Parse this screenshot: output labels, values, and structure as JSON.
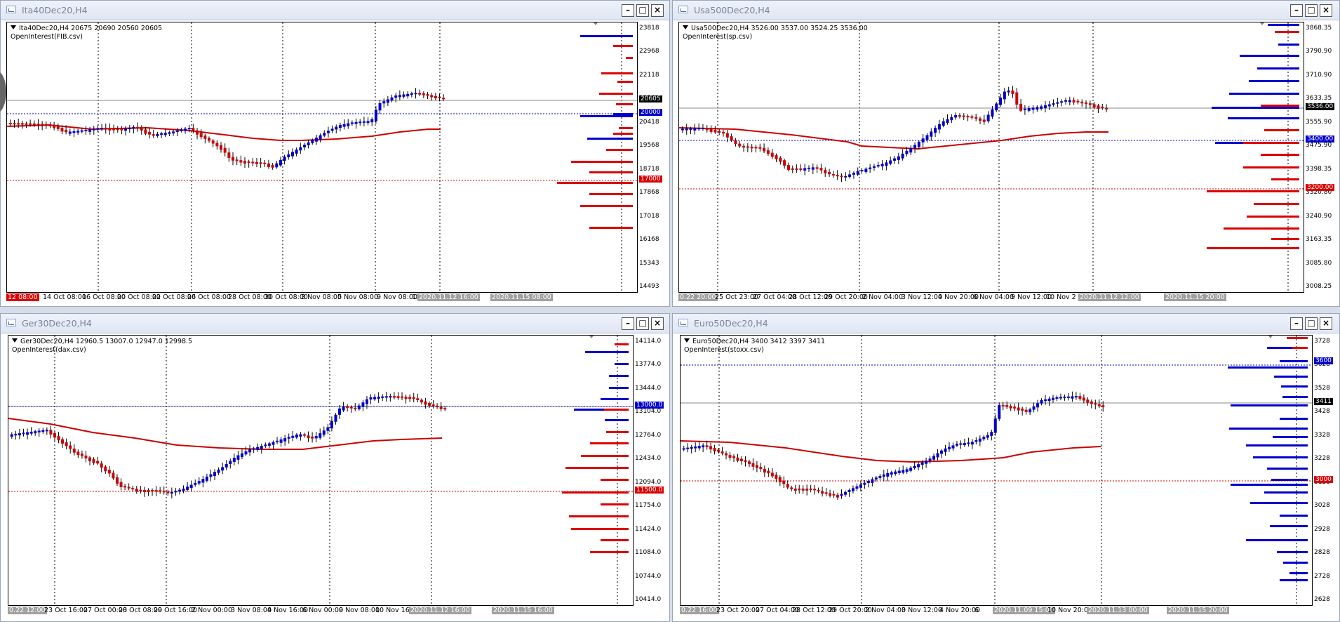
{
  "colors": {
    "bull": "#0000cc",
    "bear": "#cc0000",
    "ma": "#cc0000",
    "blue": "#0000cc",
    "red": "#dd0000",
    "black": "#000000"
  },
  "windows": [
    {
      "id": "ita",
      "title": "Ita40Dec20,H4",
      "info_symbol": "Ita40Dec20,H4  20675 20690 20560 20605",
      "info_indicator": "OpenInterest(FIB.csv)",
      "y_labels": [
        "23818",
        "22968",
        "22118",
        "21268",
        "20418",
        "19568",
        "18718",
        "17868",
        "17018",
        "16168",
        "15343",
        "14493"
      ],
      "price_tags": [
        {
          "text": "20605",
          "color": "black"
        },
        {
          "text": "20000",
          "color": "blue"
        },
        {
          "text": "17000",
          "color": "red"
        }
      ],
      "x_labels": [
        "12 08:00",
        "14 Oct 08:00",
        "16 Oct 08:00",
        "20 Oct 08:00",
        "22 Oct 08:00",
        "26 Oct 08:00",
        "28 Oct 08:00",
        "30 Oct 08:00",
        "3 Nov 08:00",
        "5 Nov 08:00",
        "9 Nov 08:00",
        "11",
        "2020.11.12 16:00",
        "2020.11.15 08:00"
      ]
    },
    {
      "id": "usa",
      "title": "Usa500Dec20,H4",
      "info_symbol": "Usa500Dec20,H4  3526.00 3537.00 3524.25 3536.00",
      "info_indicator": "OpenInterest(sp.csv)",
      "y_labels": [
        "3868.35",
        "3790.90",
        "3710.90",
        "3633.35",
        "3555.90",
        "3475.90",
        "3398.35",
        "3320.80",
        "3240.90",
        "3163.35",
        "3085.80",
        "3008.25"
      ],
      "price_tags": [
        {
          "text": "3536.00",
          "color": "black"
        },
        {
          "text": "3400.00",
          "color": "blue"
        },
        {
          "text": "3200.00",
          "color": "red"
        }
      ],
      "x_labels": [
        "0.22 20:00",
        "25 Oct 23:00",
        "27 Oct 04:00",
        "28 Oct 12:00",
        "29 Oct 20:00",
        "2 Nov 04:00",
        "3 Nov 12:00",
        "4 Nov 20:00",
        "6 Nov 04:00",
        "9 Nov 12:00",
        "10 Nov 2",
        "2020.11.12 12:00",
        "2020.11.15 20:00"
      ]
    },
    {
      "id": "ger",
      "title": "Ger30Dec20,H4",
      "info_symbol": "Ger30Dec20,H4  12960.5 13007.0 12947.0 12998.5",
      "info_indicator": "OpenInterest(dax.csv)",
      "y_labels": [
        "14114.0",
        "13774.0",
        "13444.0",
        "13104.0",
        "12764.0",
        "12434.0",
        "12094.0",
        "11754.0",
        "11424.0",
        "11084.0",
        "10744.0",
        "10414.0"
      ],
      "price_tags": [
        {
          "text": "13000.0",
          "color": "blue"
        },
        {
          "text": "11500.0",
          "color": "red"
        }
      ],
      "x_labels": [
        "0.22 12:00",
        "23 Oct 16:00",
        "27 Oct 00:00",
        "28 Oct 08:00",
        "29 Oct 16:00",
        "2 Nov 00:00",
        "3 Nov 08:00",
        "4 Nov 16:00",
        "6 Nov 00:00",
        "9 Nov 08:00",
        "10 Nov 16:00",
        "2020.11.12 16:00",
        "2020.11.15 16:00"
      ]
    },
    {
      "id": "euro",
      "title": "Euro50Dec20,H4",
      "info_symbol": "Euro50Dec20,H4  3400 3412 3397 3411",
      "info_indicator": "OpenInterest(stoxx.csv)",
      "y_labels": [
        "3728",
        "3628",
        "3528",
        "3428",
        "3328",
        "3228",
        "3128",
        "3028",
        "2928",
        "2828",
        "2728",
        "2628"
      ],
      "price_tags": [
        {
          "text": "3600",
          "color": "blue"
        },
        {
          "text": "3411",
          "color": "black"
        },
        {
          "text": "3000",
          "color": "red"
        }
      ],
      "x_labels": [
        "0.22 16:00",
        "23 Oct 20:00",
        "27 Oct 04:00",
        "28 Oct 12:00",
        "29 Oct 20:00",
        "2 Nov 04:00",
        "3 Nov 12:00",
        "4 Nov 20:00",
        "6",
        "2020.11.09 15:00",
        "10 Nov 20:00",
        "2020.11.13 00:00",
        "2020.11.15 20:00"
      ]
    }
  ]
}
